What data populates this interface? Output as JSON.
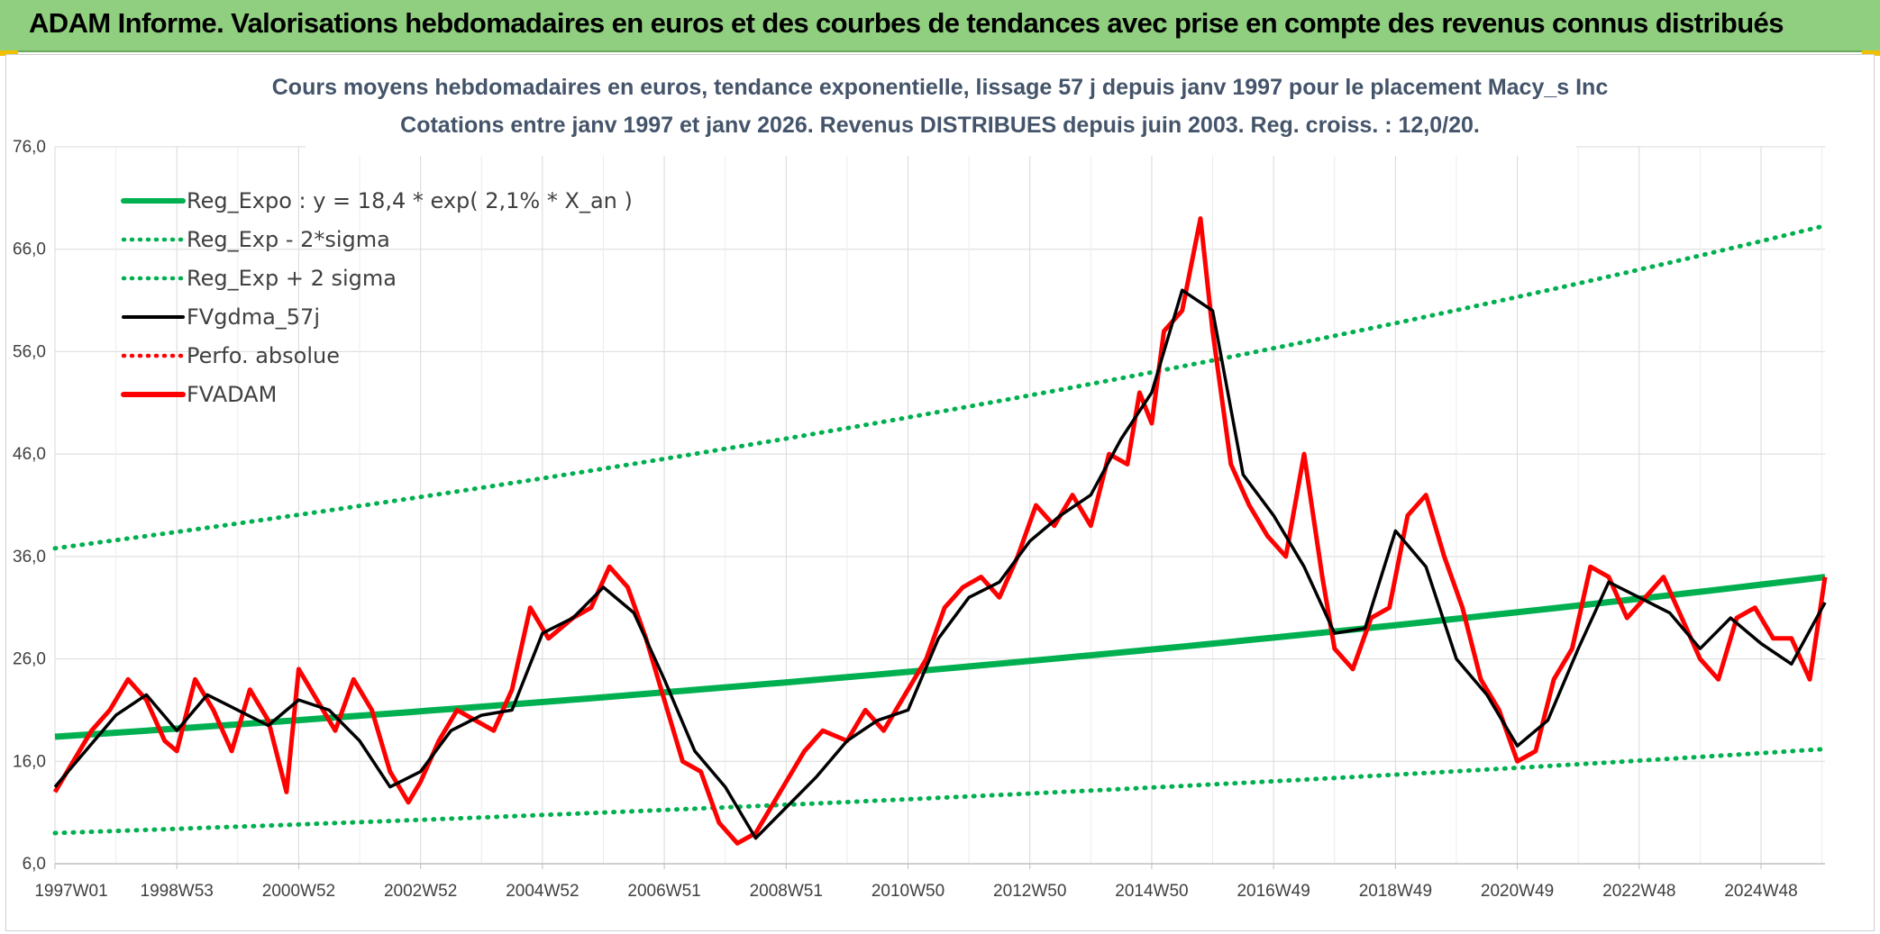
{
  "banner": {
    "title": "ADAM Informe. Valorisations hebdomadaires en euros et des courbes de tendances avec prise en compte des revenus connus distribués"
  },
  "colors": {
    "banner_bg": "#8fcf7f",
    "reg_expo": "#00b050",
    "fvadam": "#ff0000",
    "fvgdma": "#000000",
    "grid": "#d9d9d9"
  },
  "chart_data": {
    "type": "line",
    "title": "Cours moyens hebdomadaires en euros, tendance exponentielle, lissage 57 j depuis janv 1997 pour le placement Macy_s Inc",
    "subtitle": "Cotations entre janv 1997 et janv 2026. Revenus DISTRIBUES depuis juin 2003. Reg. croiss. : 12,0/20.",
    "xlabel": "",
    "ylabel": "",
    "ylim": [
      6,
      76
    ],
    "yticks": [
      "6,0",
      "16,0",
      "26,0",
      "36,0",
      "46,0",
      "56,0",
      "66,0",
      "76,0"
    ],
    "xticks": [
      "1997W01",
      "1998W53",
      "2000W52",
      "2002W52",
      "2004W52",
      "2006W51",
      "2008W51",
      "2010W50",
      "2012W50",
      "2014W50",
      "2016W49",
      "2018W49",
      "2020W49",
      "2022W48",
      "2024W48"
    ],
    "xlim": [
      1997.0,
      2026.05
    ],
    "grid": true,
    "legend_position": "top-left",
    "legend": [
      {
        "key": "reg",
        "label": "Reg_Expo : y = 18,4 * exp( 2,1% *  X_an )",
        "color": "#00b050",
        "style": "solid"
      },
      {
        "key": "low",
        "label": "Reg_Exp - 2*sigma",
        "color": "#00b050",
        "style": "dotted"
      },
      {
        "key": "high",
        "label": "Reg_Exp + 2 sigma",
        "color": "#00b050",
        "style": "dotted"
      },
      {
        "key": "fvg",
        "label": "FVgdma_57j",
        "color": "#000000",
        "style": "solid"
      },
      {
        "key": "perf",
        "label": "Perfo. absolue",
        "color": "#ff0000",
        "style": "dotted"
      },
      {
        "key": "fva",
        "label": "FVADAM",
        "color": "#ff0000",
        "style": "solid"
      }
    ],
    "series": [
      {
        "name": "Reg_Expo : y = 18,4 * exp( 2,1% *  X_an )",
        "x": [
          1997.0,
          2026.05
        ],
        "values": [
          18.4,
          34.0
        ]
      },
      {
        "name": "Reg_Exp - 2*sigma",
        "x": [
          1997.0,
          2026.05
        ],
        "values": [
          9.0,
          17.2
        ]
      },
      {
        "name": "Reg_Exp + 2 sigma",
        "x": [
          1997.0,
          2026.05
        ],
        "values": [
          36.8,
          68.3
        ]
      },
      {
        "name": "FVADAM",
        "x": [
          1997.0,
          1997.3,
          1997.6,
          1997.9,
          1998.2,
          1998.5,
          1998.8,
          1999.0,
          1999.3,
          1999.6,
          1999.9,
          2000.2,
          2000.5,
          2000.8,
          2001.0,
          2001.3,
          2001.6,
          2001.9,
          2002.2,
          2002.5,
          2002.8,
          2003.0,
          2003.3,
          2003.6,
          2003.9,
          2004.2,
          2004.5,
          2004.8,
          2005.1,
          2005.5,
          2005.8,
          2006.1,
          2006.4,
          2006.7,
          2007.0,
          2007.3,
          2007.6,
          2007.9,
          2008.2,
          2008.5,
          2008.8,
          2009.0,
          2009.3,
          2009.6,
          2010.0,
          2010.3,
          2010.6,
          2011.0,
          2011.3,
          2011.6,
          2011.9,
          2012.2,
          2012.5,
          2012.8,
          2013.1,
          2013.4,
          2013.7,
          2014.0,
          2014.3,
          2014.6,
          2014.8,
          2015.0,
          2015.2,
          2015.5,
          2015.8,
          2016.0,
          2016.3,
          2016.6,
          2016.9,
          2017.2,
          2017.5,
          2017.8,
          2018.0,
          2018.3,
          2018.6,
          2018.9,
          2019.2,
          2019.5,
          2019.8,
          2020.1,
          2020.4,
          2020.7,
          2021.0,
          2021.3,
          2021.6,
          2021.9,
          2022.2,
          2022.5,
          2022.8,
          2023.1,
          2023.4,
          2023.7,
          2024.0,
          2024.3,
          2024.6,
          2024.9,
          2025.2,
          2025.5,
          2025.8,
          2026.05
        ],
        "values": [
          13,
          16,
          19,
          21,
          24,
          22,
          18,
          17,
          24,
          21,
          17,
          23,
          20,
          13,
          25,
          22,
          19,
          24,
          21,
          15,
          12,
          14,
          18,
          21,
          20,
          19,
          23,
          31,
          28,
          30,
          31,
          35,
          33,
          28,
          22,
          16,
          15,
          10,
          8,
          9,
          12,
          14,
          17,
          19,
          18,
          21,
          19,
          23,
          26,
          31,
          33,
          34,
          32,
          36,
          41,
          39,
          42,
          39,
          46,
          45,
          52,
          49,
          58,
          60,
          69,
          58,
          45,
          41,
          38,
          36,
          46,
          34,
          27,
          25,
          30,
          31,
          40,
          42,
          36,
          31,
          24,
          21,
          16,
          17,
          24,
          27,
          35,
          34,
          30,
          32,
          34,
          30,
          26,
          24,
          30,
          31,
          28,
          28,
          24,
          34
        ]
      },
      {
        "name": "FVgdma_57j",
        "x": [
          1997.0,
          1997.5,
          1998.0,
          1998.5,
          1999.0,
          1999.5,
          2000.0,
          2000.5,
          2001.0,
          2001.5,
          2002.0,
          2002.5,
          2003.0,
          2003.5,
          2004.0,
          2004.5,
          2005.0,
          2005.5,
          2006.0,
          2006.5,
          2007.0,
          2007.5,
          2008.0,
          2008.5,
          2009.0,
          2009.5,
          2010.0,
          2010.5,
          2011.0,
          2011.5,
          2012.0,
          2012.5,
          2013.0,
          2013.5,
          2014.0,
          2014.5,
          2015.0,
          2015.5,
          2016.0,
          2016.5,
          2017.0,
          2017.5,
          2018.0,
          2018.5,
          2019.0,
          2019.5,
          2020.0,
          2020.5,
          2021.0,
          2021.5,
          2022.0,
          2022.5,
          2023.0,
          2023.5,
          2024.0,
          2024.5,
          2025.0,
          2025.5,
          2026.05
        ],
        "values": [
          13.5,
          17.0,
          20.5,
          22.5,
          19.0,
          22.5,
          21.0,
          19.5,
          22.0,
          21.0,
          18.0,
          13.5,
          15.0,
          19.0,
          20.5,
          21.0,
          28.5,
          30.0,
          33.0,
          30.5,
          24.0,
          17.0,
          13.5,
          8.5,
          11.5,
          14.5,
          18.0,
          20.0,
          21.0,
          28.0,
          32.0,
          33.5,
          37.5,
          40.0,
          42.0,
          47.5,
          52.0,
          62.0,
          60.0,
          44.0,
          40.0,
          35.0,
          28.5,
          29.0,
          38.5,
          35.0,
          26.0,
          22.5,
          17.5,
          20.0,
          27.0,
          33.5,
          32.0,
          30.5,
          27.0,
          30.0,
          27.5,
          25.5,
          31.5
        ]
      }
    ]
  }
}
